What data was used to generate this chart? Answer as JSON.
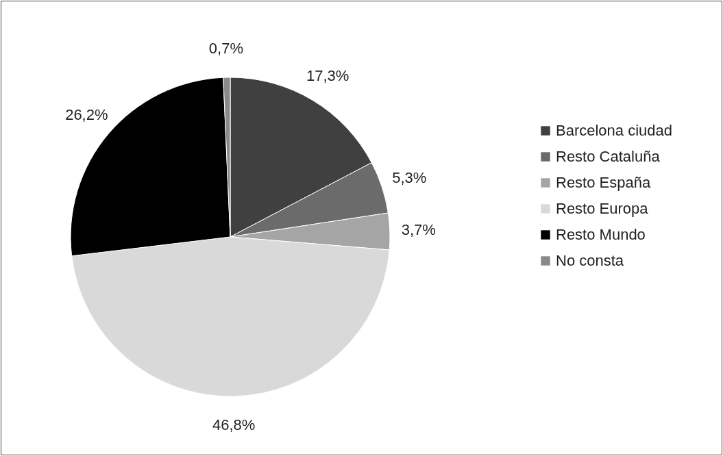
{
  "chart_data": {
    "type": "pie",
    "categories": [
      "Barcelona ciudad",
      "Resto Cataluña",
      "Resto España",
      "Resto Europa",
      "Resto Mundo",
      "No consta"
    ],
    "values": [
      17.3,
      5.3,
      3.7,
      46.8,
      26.2,
      0.7
    ],
    "colors": [
      "#404040",
      "#6b6b6b",
      "#a5a5a5",
      "#d9d9d9",
      "#000000",
      "#8a8a8a"
    ],
    "value_labels": [
      "17,3%",
      "5,3%",
      "3,7%",
      "46,8%",
      "26,2%",
      "0,7%"
    ],
    "legend": "right"
  }
}
